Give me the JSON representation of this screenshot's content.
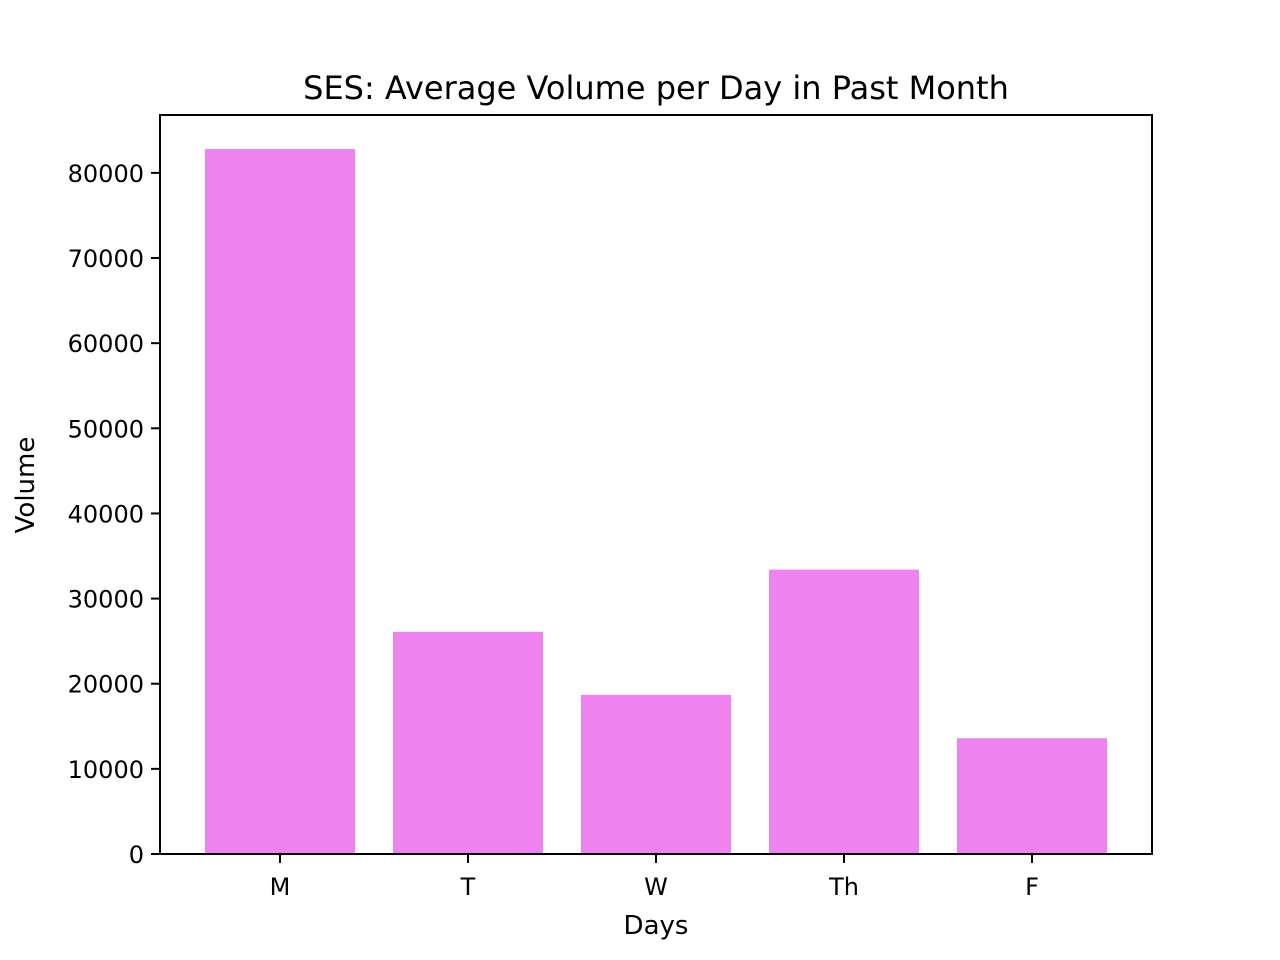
{
  "chart_data": {
    "type": "bar",
    "title": "SES: Average Volume per Day in Past Month",
    "xlabel": "Days",
    "ylabel": "Volume",
    "categories": [
      "M",
      "T",
      "W",
      "Th",
      "F"
    ],
    "values": [
      82800,
      26100,
      18700,
      33400,
      13600
    ],
    "ylim": [
      0,
      86800
    ],
    "yticks": [
      0,
      10000,
      20000,
      30000,
      40000,
      50000,
      60000,
      70000,
      80000
    ],
    "ytick_labels": [
      "0",
      "10000",
      "20000",
      "30000",
      "40000",
      "50000",
      "60000",
      "70000",
      "80000"
    ],
    "grid": false,
    "bar_color": "#ee82ee"
  }
}
